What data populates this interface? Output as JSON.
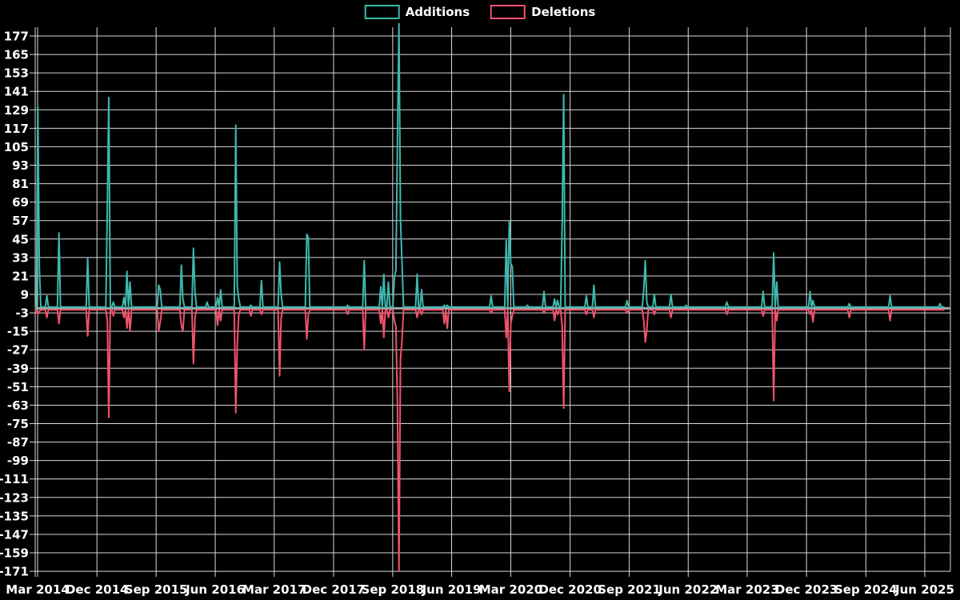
{
  "colors": {
    "background": "#000000",
    "grid": "#d9d9d9",
    "text": "#ffffff",
    "additions": "#3db9ae",
    "deletions": "#f2536d",
    "zero_line": "#9aacac"
  },
  "legend": {
    "additions_label": "Additions",
    "deletions_label": "Deletions"
  },
  "chart_data": {
    "type": "line",
    "title": "",
    "xlabel": "",
    "ylabel": "",
    "legend_position": "top-center",
    "grid": true,
    "legend": [
      {
        "label": "Additions",
        "color": "#3db9ae"
      },
      {
        "label": "Deletions",
        "color": "#f2536d"
      }
    ],
    "y_axis": {
      "min": -171,
      "max": 177,
      "step": 12,
      "tick_labels": [
        "177",
        "165",
        "153",
        "141",
        "129",
        "117",
        "105",
        "93",
        "81",
        "69",
        "57",
        "45",
        "33",
        "21",
        "9",
        "-3",
        "-15",
        "-27",
        "-39",
        "-51",
        "-63",
        "-75",
        "-87",
        "-99",
        "-111",
        "-123",
        "-135",
        "-147",
        "-159",
        "-171"
      ]
    },
    "x_axis": {
      "tick_labels": [
        "Mar 2014",
        "Dec 2014",
        "Sep 2015",
        "Jun 2016",
        "Mar 2017",
        "Dec 2017",
        "Sep 2018",
        "Jun 2019",
        "Mar 2020",
        "Dec 2020",
        "Sep 2021",
        "Jun 2022",
        "Mar 2023",
        "Dec 2023",
        "Sep 2024",
        "Jun 2025"
      ],
      "tick_dates": [
        "2014-03-01",
        "2014-12-01",
        "2015-09-01",
        "2016-06-01",
        "2017-03-01",
        "2017-12-01",
        "2018-09-01",
        "2019-06-01",
        "2020-03-01",
        "2020-12-01",
        "2021-09-01",
        "2022-06-01",
        "2023-03-01",
        "2023-12-01",
        "2024-09-01",
        "2025-06-01"
      ],
      "domain": [
        "2014-02-16",
        "2025-08-31"
      ]
    },
    "baseline": {
      "additions": 0.8,
      "deletions": -1
    },
    "series": [
      {
        "name": "Additions",
        "key": "a",
        "color": "#3db9ae"
      },
      {
        "name": "Deletions",
        "key": "d",
        "color": "#f2536d"
      }
    ],
    "weekly_spikes": [
      {
        "date": "2014-03-02",
        "a": 131,
        "d": -4
      },
      {
        "date": "2014-03-09",
        "a": 26,
        "d": -2
      },
      {
        "date": "2014-04-13",
        "a": 8,
        "d": -6
      },
      {
        "date": "2014-06-08",
        "a": 49,
        "d": -10
      },
      {
        "date": "2014-10-19",
        "a": 33,
        "d": -18
      },
      {
        "date": "2015-01-18",
        "a": 68,
        "d": -8
      },
      {
        "date": "2015-01-25",
        "a": 137,
        "d": -71
      },
      {
        "date": "2015-02-15",
        "a": 4,
        "d": -5
      },
      {
        "date": "2015-04-05",
        "a": 7,
        "d": -6
      },
      {
        "date": "2015-04-19",
        "a": 24,
        "d": -13
      },
      {
        "date": "2015-05-03",
        "a": 17,
        "d": -15
      },
      {
        "date": "2015-09-13",
        "a": 15,
        "d": -15
      },
      {
        "date": "2015-09-20",
        "a": 12,
        "d": -9
      },
      {
        "date": "2015-12-27",
        "a": 28,
        "d": -11
      },
      {
        "date": "2016-01-03",
        "a": 6,
        "d": -15
      },
      {
        "date": "2016-02-21",
        "a": 39,
        "d": -36
      },
      {
        "date": "2016-02-28",
        "a": 11,
        "d": -6
      },
      {
        "date": "2016-04-24",
        "a": 4,
        "d": -1
      },
      {
        "date": "2016-06-12",
        "a": 7,
        "d": -11
      },
      {
        "date": "2016-06-26",
        "a": 12,
        "d": -8
      },
      {
        "date": "2016-09-04",
        "a": 119,
        "d": -68
      },
      {
        "date": "2016-09-11",
        "a": 14,
        "d": -23
      },
      {
        "date": "2016-09-18",
        "a": 6,
        "d": -4
      },
      {
        "date": "2016-11-13",
        "a": 2,
        "d": -5
      },
      {
        "date": "2017-01-01",
        "a": 18,
        "d": -4
      },
      {
        "date": "2017-03-26",
        "a": 30,
        "d": -44
      },
      {
        "date": "2017-04-02",
        "a": 9,
        "d": -6
      },
      {
        "date": "2017-07-30",
        "a": 48,
        "d": -20
      },
      {
        "date": "2017-08-06",
        "a": 46,
        "d": -4
      },
      {
        "date": "2018-02-04",
        "a": 2,
        "d": -4
      },
      {
        "date": "2018-04-22",
        "a": 31,
        "d": -27
      },
      {
        "date": "2018-07-08",
        "a": 14,
        "d": -10
      },
      {
        "date": "2018-07-22",
        "a": 22,
        "d": -19
      },
      {
        "date": "2018-08-12",
        "a": 17,
        "d": -6
      },
      {
        "date": "2018-09-09",
        "a": 20,
        "d": -8
      },
      {
        "date": "2018-09-16",
        "a": 25,
        "d": -12
      },
      {
        "date": "2018-09-23",
        "a": 108,
        "d": -63
      },
      {
        "date": "2018-09-30",
        "a": 185,
        "d": -171
      },
      {
        "date": "2018-10-07",
        "a": 58,
        "d": -33
      },
      {
        "date": "2018-10-14",
        "a": 30,
        "d": -21
      },
      {
        "date": "2018-12-23",
        "a": 22,
        "d": -6
      },
      {
        "date": "2019-01-13",
        "a": 12,
        "d": -4
      },
      {
        "date": "2019-04-28",
        "a": 2,
        "d": -10
      },
      {
        "date": "2019-05-12",
        "a": 2,
        "d": -13
      },
      {
        "date": "2019-12-01",
        "a": 8,
        "d": -3
      },
      {
        "date": "2020-02-09",
        "a": 44,
        "d": -19
      },
      {
        "date": "2020-02-23",
        "a": 57,
        "d": -54
      },
      {
        "date": "2020-03-01",
        "a": 29,
        "d": -10
      },
      {
        "date": "2020-03-08",
        "a": 27,
        "d": -5
      },
      {
        "date": "2020-05-17",
        "a": 2,
        "d": -1
      },
      {
        "date": "2020-08-02",
        "a": 11,
        "d": -3
      },
      {
        "date": "2020-09-20",
        "a": 6,
        "d": -8
      },
      {
        "date": "2020-10-04",
        "a": 5,
        "d": -4
      },
      {
        "date": "2020-10-25",
        "a": 54,
        "d": -12
      },
      {
        "date": "2020-11-01",
        "a": 139,
        "d": -65
      },
      {
        "date": "2021-02-14",
        "a": 8,
        "d": -4
      },
      {
        "date": "2021-03-21",
        "a": 15,
        "d": -6
      },
      {
        "date": "2021-08-22",
        "a": 5,
        "d": -3
      },
      {
        "date": "2021-11-07",
        "a": 12,
        "d": -8
      },
      {
        "date": "2021-11-14",
        "a": 31,
        "d": -22
      },
      {
        "date": "2021-11-21",
        "a": 4,
        "d": -14
      },
      {
        "date": "2021-12-26",
        "a": 9,
        "d": -4
      },
      {
        "date": "2022-03-13",
        "a": 9,
        "d": -6
      },
      {
        "date": "2022-05-22",
        "a": 2,
        "d": -1
      },
      {
        "date": "2022-11-27",
        "a": 4,
        "d": -4
      },
      {
        "date": "2023-05-14",
        "a": 11,
        "d": -5
      },
      {
        "date": "2023-07-02",
        "a": 36,
        "d": -60
      },
      {
        "date": "2023-07-16",
        "a": 17,
        "d": -8
      },
      {
        "date": "2023-12-17",
        "a": 11,
        "d": -4
      },
      {
        "date": "2023-12-31",
        "a": 5,
        "d": -9
      },
      {
        "date": "2024-06-16",
        "a": 3,
        "d": -6
      },
      {
        "date": "2024-12-22",
        "a": 8,
        "d": -8
      },
      {
        "date": "2025-08-10",
        "a": 3,
        "d": -1
      }
    ]
  }
}
